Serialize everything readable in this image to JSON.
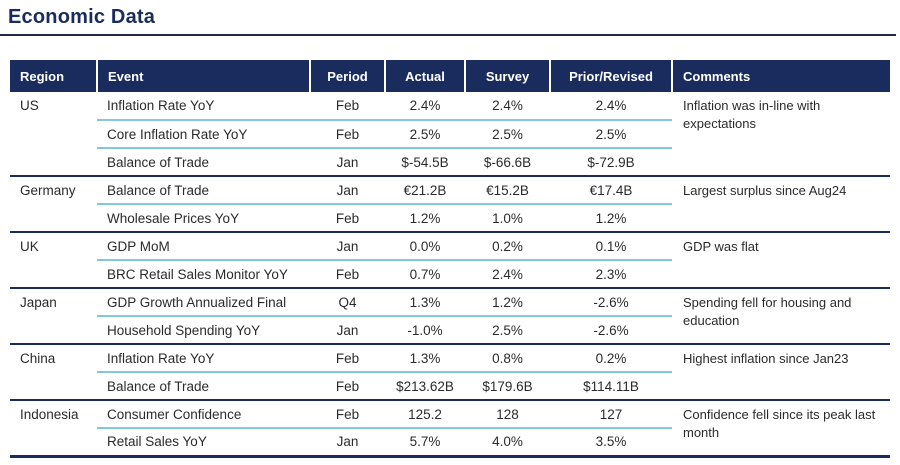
{
  "title": "Economic Data",
  "colors": {
    "navy": "#1a2c5e",
    "light_blue": "#7fc9e6",
    "body_text": "#2b2b2b",
    "header_text": "#ffffff"
  },
  "table": {
    "columns": [
      "Region",
      "Event",
      "Period",
      "Actual",
      "Survey",
      "Prior/Revised",
      "Comments"
    ],
    "groups": [
      {
        "region": "US",
        "comment": "Inflation was in-line with expectations",
        "rows": [
          {
            "event": "Inflation Rate YoY",
            "period": "Feb",
            "actual": "2.4%",
            "survey": "2.4%",
            "prior": "2.4%"
          },
          {
            "event": "Core Inflation Rate YoY",
            "period": "Feb",
            "actual": "2.5%",
            "survey": "2.5%",
            "prior": "2.5%"
          },
          {
            "event": "Balance of Trade",
            "period": "Jan",
            "actual": "$-54.5B",
            "survey": "$-66.6B",
            "prior": "$-72.9B"
          }
        ]
      },
      {
        "region": "Germany",
        "comment": "Largest surplus since Aug24",
        "rows": [
          {
            "event": "Balance of Trade",
            "period": "Jan",
            "actual": "€21.2B",
            "survey": "€15.2B",
            "prior": "€17.4B"
          },
          {
            "event": "Wholesale Prices YoY",
            "period": "Feb",
            "actual": "1.2%",
            "survey": "1.0%",
            "prior": "1.2%"
          }
        ]
      },
      {
        "region": "UK",
        "comment": "GDP was flat",
        "rows": [
          {
            "event": "GDP MoM",
            "period": "Jan",
            "actual": "0.0%",
            "survey": "0.2%",
            "prior": "0.1%"
          },
          {
            "event": "BRC Retail Sales Monitor YoY",
            "period": "Feb",
            "actual": "0.7%",
            "survey": "2.4%",
            "prior": "2.3%"
          }
        ]
      },
      {
        "region": "Japan",
        "comment": "Spending fell for housing and education",
        "rows": [
          {
            "event": "GDP Growth Annualized Final",
            "period": "Q4",
            "actual": "1.3%",
            "survey": "1.2%",
            "prior": "-2.6%"
          },
          {
            "event": "Household Spending YoY",
            "period": "Jan",
            "actual": "-1.0%",
            "survey": "2.5%",
            "prior": "-2.6%"
          }
        ]
      },
      {
        "region": "China",
        "comment": "Highest inflation since Jan23",
        "rows": [
          {
            "event": "Inflation Rate YoY",
            "period": "Feb",
            "actual": "1.3%",
            "survey": "0.8%",
            "prior": "0.2%"
          },
          {
            "event": "Balance of Trade",
            "period": "Feb",
            "actual": "$213.62B",
            "survey": "$179.6B",
            "prior": "$114.11B"
          }
        ]
      },
      {
        "region": "Indonesia",
        "comment": "Confidence fell since its peak last month",
        "rows": [
          {
            "event": "Consumer Confidence",
            "period": "Feb",
            "actual": "125.2",
            "survey": "128",
            "prior": "127"
          },
          {
            "event": "Retail Sales YoY",
            "period": "Jan",
            "actual": "5.7%",
            "survey": "4.0%",
            "prior": "3.5%"
          }
        ]
      }
    ]
  },
  "chart_data": {
    "type": "table",
    "title": "Economic Data",
    "columns": [
      "Region",
      "Event",
      "Period",
      "Actual",
      "Survey",
      "Prior/Revised",
      "Comments"
    ],
    "rows": [
      [
        "US",
        "Inflation Rate YoY",
        "Feb",
        "2.4%",
        "2.4%",
        "2.4%",
        "Inflation was in-line with expectations"
      ],
      [
        "US",
        "Core Inflation Rate YoY",
        "Feb",
        "2.5%",
        "2.5%",
        "2.5%",
        ""
      ],
      [
        "US",
        "Balance of Trade",
        "Jan",
        "$-54.5B",
        "$-66.6B",
        "$-72.9B",
        ""
      ],
      [
        "Germany",
        "Balance of Trade",
        "Jan",
        "€21.2B",
        "€15.2B",
        "€17.4B",
        "Largest surplus since Aug24"
      ],
      [
        "Germany",
        "Wholesale Prices YoY",
        "Feb",
        "1.2%",
        "1.0%",
        "1.2%",
        ""
      ],
      [
        "UK",
        "GDP MoM",
        "Jan",
        "0.0%",
        "0.2%",
        "0.1%",
        "GDP was flat"
      ],
      [
        "UK",
        "BRC Retail Sales Monitor YoY",
        "Feb",
        "0.7%",
        "2.4%",
        "2.3%",
        ""
      ],
      [
        "Japan",
        "GDP Growth Annualized Final",
        "Q4",
        "1.3%",
        "1.2%",
        "-2.6%",
        "Spending fell for housing and education"
      ],
      [
        "Japan",
        "Household Spending YoY",
        "Jan",
        "-1.0%",
        "2.5%",
        "-2.6%",
        ""
      ],
      [
        "China",
        "Inflation Rate YoY",
        "Feb",
        "1.3%",
        "0.8%",
        "0.2%",
        "Highest inflation since Jan23"
      ],
      [
        "China",
        "Balance of Trade",
        "Feb",
        "$213.62B",
        "$179.6B",
        "$114.11B",
        ""
      ],
      [
        "Indonesia",
        "Consumer Confidence",
        "Feb",
        "125.2",
        "128",
        "127",
        "Confidence fell since its peak last month"
      ],
      [
        "Indonesia",
        "Retail Sales YoY",
        "Jan",
        "5.7%",
        "4.0%",
        "3.5%",
        ""
      ]
    ]
  }
}
